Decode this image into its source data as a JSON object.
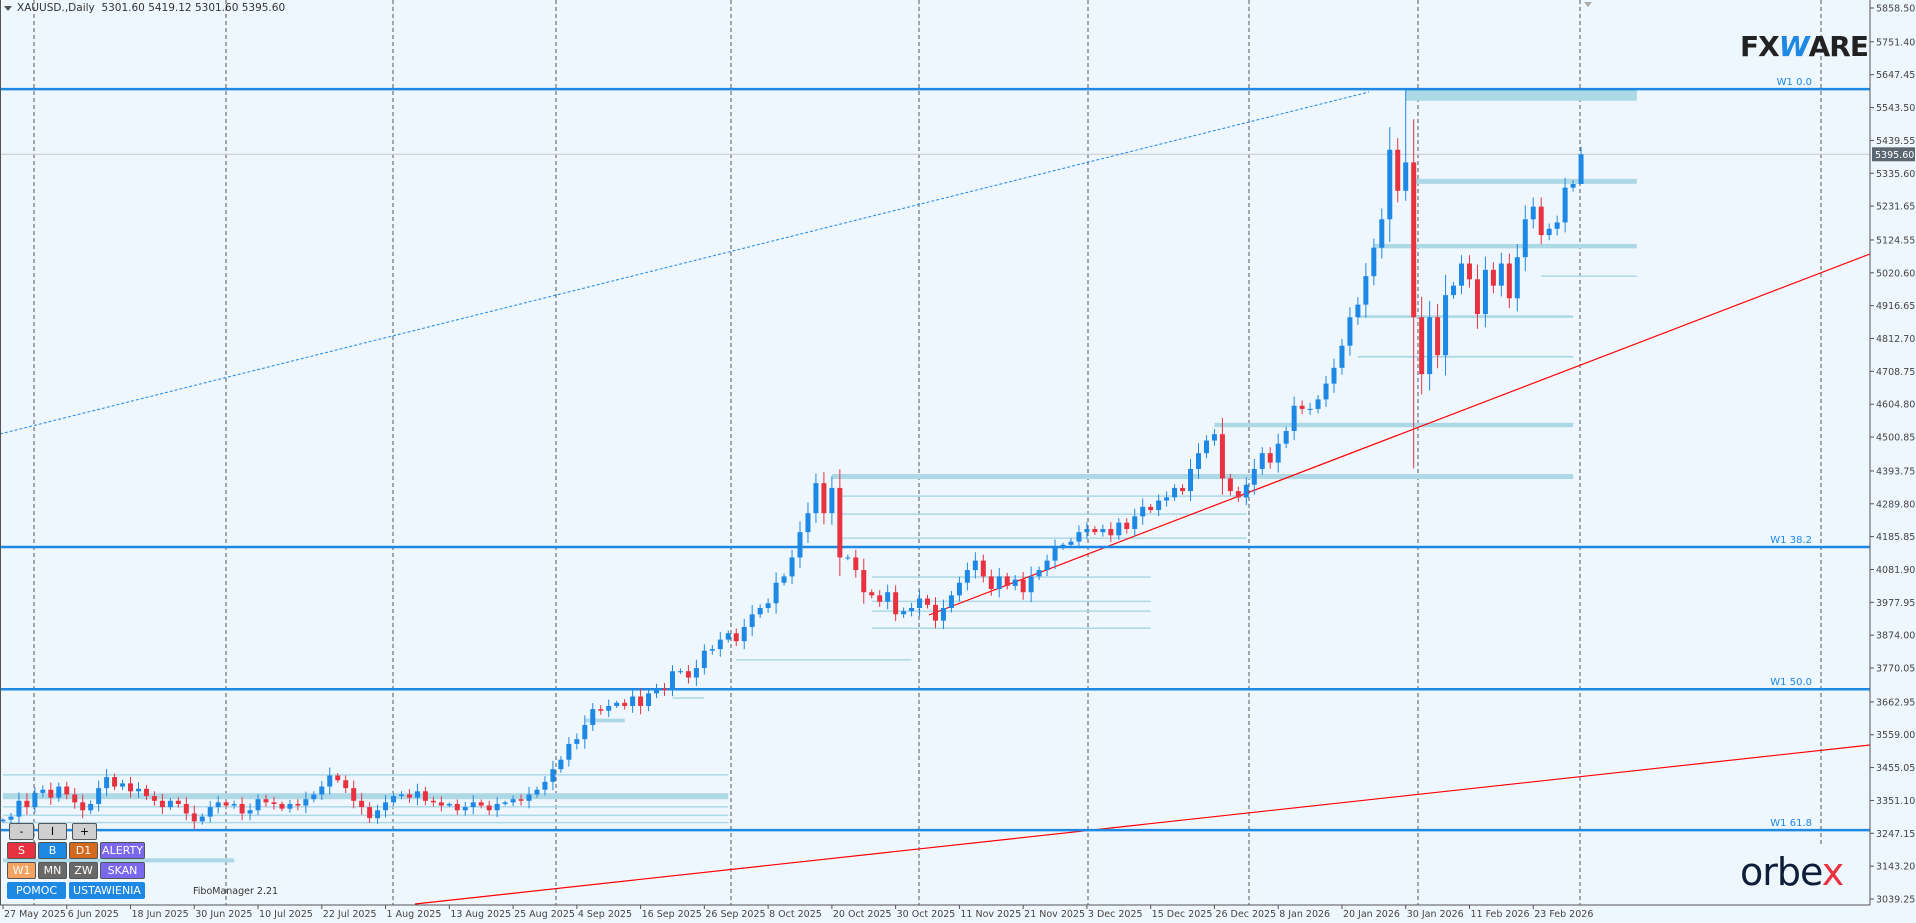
{
  "header": {
    "symbol": "XAUUSD.,Daily",
    "ohlc": "5301.60 5419.12 5301.60 5395.60"
  },
  "logos": {
    "fxware_a": "FX",
    "fxware_w": "W",
    "fxware_b": "ARE",
    "orbex_a": "orbe",
    "orbex_b": "x"
  },
  "panel": {
    "minus": "-",
    "pause": "I",
    "plus": "+",
    "s": "S",
    "b": "B",
    "d1": "D1",
    "alerts": "ALERTY",
    "w1": "W1",
    "mn": "MN",
    "zw": "ZW",
    "scan": "SKAN",
    "help": "POMOC",
    "settings": "USTAWIENIA",
    "footer": "FiboManager 2.21"
  },
  "colors": {
    "bull": "#1E88E5",
    "bear": "#E8323F",
    "zone": "#ADD8E6",
    "fib": "#1E88E5",
    "trend": "#FF0000",
    "background": "#EFF7FE"
  },
  "chart_data": {
    "type": "candlestick",
    "title": "XAUUSD., Daily",
    "current_price": 5395.6,
    "current_price_label": "5395.60",
    "last_bar": {
      "open": 5301.6,
      "high": 5419.12,
      "low": 5301.6,
      "close": 5395.6
    },
    "ylim": [
      3039.25,
      5858.5
    ],
    "y_ticks": [
      "5858.50",
      "5751.40",
      "5647.45",
      "5543.50",
      "5439.55",
      "5335.60",
      "5231.65",
      "5124.55",
      "5020.60",
      "4916.65",
      "4812.70",
      "4708.75",
      "4604.80",
      "4500.85",
      "4393.75",
      "4289.80",
      "4185.85",
      "4081.90",
      "3977.95",
      "3874.00",
      "3770.05",
      "3662.95",
      "3559.00",
      "3455.05",
      "3351.10",
      "3247.15",
      "3143.20",
      "3039.25"
    ],
    "x_ticks": [
      "27 May 2025",
      "6 Jun 2025",
      "18 Jun 2025",
      "30 Jun 2025",
      "10 Jul 2025",
      "22 Jul 2025",
      "1 Aug 2025",
      "13 Aug 2025",
      "25 Aug 2025",
      "4 Sep 2025",
      "16 Sep 2025",
      "26 Sep 2025",
      "8 Oct 2025",
      "20 Oct 2025",
      "30 Oct 2025",
      "11 Nov 2025",
      "21 Nov 2025",
      "3 Dec 2025",
      "15 Dec 2025",
      "26 Dec 2025",
      "8 Jan 2026",
      "20 Jan 2026",
      "30 Jan 2026",
      "11 Feb 2026",
      "23 Feb 2026"
    ],
    "x_tick_every_bars": 8,
    "first_open": 3285,
    "closes": [
      3290,
      3300,
      3350,
      3330,
      3375,
      3385,
      3360,
      3395,
      3370,
      3345,
      3320,
      3340,
      3390,
      3425,
      3395,
      3405,
      3380,
      3388,
      3365,
      3350,
      3330,
      3350,
      3340,
      3310,
      3285,
      3300,
      3330,
      3345,
      3335,
      3340,
      3310,
      3320,
      3355,
      3345,
      3340,
      3325,
      3340,
      3335,
      3355,
      3370,
      3395,
      3430,
      3415,
      3390,
      3350,
      3330,
      3295,
      3320,
      3345,
      3365,
      3370,
      3360,
      3380,
      3350,
      3345,
      3335,
      3340,
      3320,
      3330,
      3345,
      3335,
      3320,
      3340,
      3345,
      3355,
      3350,
      3370,
      3385,
      3410,
      3450,
      3480,
      3530,
      3545,
      3590,
      3640,
      3635,
      3650,
      3660,
      3650,
      3680,
      3650,
      3690,
      3705,
      3700,
      3760,
      3760,
      3740,
      3770,
      3825,
      3830,
      3860,
      3880,
      3855,
      3900,
      3940,
      3960,
      3975,
      4040,
      4060,
      4120,
      4200,
      4260,
      4355,
      4260,
      4340,
      4120,
      4120,
      4080,
      4010,
      4000,
      3980,
      4010,
      3940,
      3950,
      3960,
      3990,
      3970,
      3920,
      3960,
      4000,
      4040,
      4080,
      4110,
      4060,
      4020,
      4060,
      4030,
      4050,
      4010,
      4060,
      4080,
      4110,
      4150,
      4160,
      4170,
      4200,
      4210,
      4200,
      4210,
      4190,
      4230,
      4210,
      4250,
      4280,
      4270,
      4300,
      4310,
      4340,
      4330,
      4400,
      4450,
      4490,
      4510,
      4370,
      4330,
      4310,
      4350,
      4400,
      4450,
      4420,
      4480,
      4520,
      4600,
      4590,
      4590,
      4620,
      4670,
      4720,
      4790,
      4880,
      4920,
      5010,
      5100,
      5190,
      5410,
      5280,
      5370,
      4880,
      4700,
      4880,
      4760,
      4950,
      4980,
      5050,
      5000,
      4890,
      5030,
      4980,
      5050,
      4940,
      5070,
      5190,
      5230,
      5140,
      5160,
      5180,
      5290,
      5301.6,
      5395.6
    ],
    "extreme_overrides": {
      "176": {
        "high": 5602
      },
      "177": {
        "low": 4402
      },
      "198": {
        "high": 5419.12,
        "low": 5301.6
      }
    },
    "fib_levels": [
      {
        "label": "W1 0.0",
        "price": 5602
      },
      {
        "label": "W1 38.2",
        "price": 4153
      },
      {
        "label": "W1 50.0",
        "price": 3703
      },
      {
        "label": "W1 61.8",
        "price": 3257
      }
    ],
    "zones": [
      [
        5565,
        5600,
        176,
        205
      ],
      [
        5302,
        5318,
        177,
        205
      ],
      [
        5098,
        5112,
        172,
        205
      ],
      [
        5010,
        5010,
        193,
        205
      ],
      [
        4878,
        4886,
        170,
        197
      ],
      [
        4752,
        4758,
        170,
        197
      ],
      [
        4532,
        4546,
        152,
        197
      ],
      [
        4368,
        4384,
        104,
        197
      ],
      [
        4314,
        4314,
        105,
        156
      ],
      [
        4257,
        4257,
        105,
        156
      ],
      [
        4181,
        4181,
        105,
        156
      ],
      [
        4058,
        4058,
        109,
        144
      ],
      [
        3981,
        3981,
        109,
        144
      ],
      [
        3950,
        3950,
        109,
        144
      ],
      [
        3896,
        3896,
        109,
        144
      ],
      [
        3796,
        3796,
        92,
        114
      ],
      [
        3675,
        3675,
        84,
        88
      ],
      [
        3598,
        3610,
        73,
        78
      ],
      [
        3432,
        3432,
        0,
        91
      ],
      [
        3355,
        3374,
        0,
        91
      ],
      [
        3331,
        3331,
        0,
        91
      ],
      [
        3304,
        3304,
        0,
        91
      ],
      [
        3281,
        3281,
        0,
        91
      ],
      [
        3155,
        3168,
        0,
        29
      ]
    ]
  }
}
